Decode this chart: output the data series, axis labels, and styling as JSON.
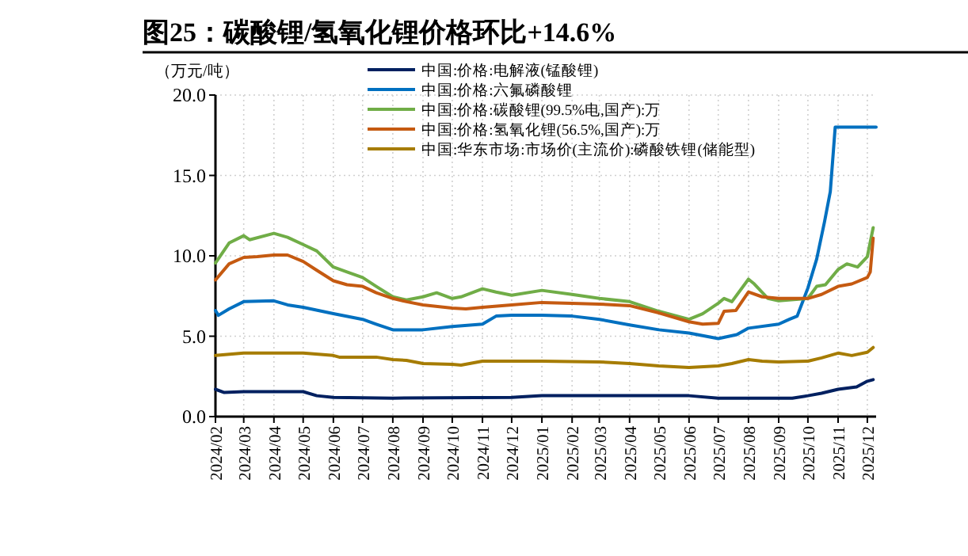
{
  "chart_data": {
    "type": "line",
    "title": "图25：碳酸锂/氢氧化锂价格环比+14.6%",
    "ylabel": "（万元/吨）",
    "xlim": [
      "2024-02-01",
      "2025-12-10"
    ],
    "xticks": [
      {
        "value": "2024-02-01",
        "label": "2024/02"
      },
      {
        "value": "2024-03-01",
        "label": "2024/03"
      },
      {
        "value": "2024-04-01",
        "label": "2024/04"
      },
      {
        "value": "2024-05-01",
        "label": "2024/05"
      },
      {
        "value": "2024-06-01",
        "label": "2024/06"
      },
      {
        "value": "2024-07-01",
        "label": "2024/07"
      },
      {
        "value": "2024-08-01",
        "label": "2024/08"
      },
      {
        "value": "2024-09-01",
        "label": "2024/09"
      },
      {
        "value": "2024-10-01",
        "label": "2024/10"
      },
      {
        "value": "2024-11-01",
        "label": "2024/11"
      },
      {
        "value": "2024-12-01",
        "label": "2024/12"
      },
      {
        "value": "2025-01-01",
        "label": "2025/01"
      },
      {
        "value": "2025-02-01",
        "label": "2025/02"
      },
      {
        "value": "2025-03-01",
        "label": "2025/03"
      },
      {
        "value": "2025-04-01",
        "label": "2025/04"
      },
      {
        "value": "2025-05-01",
        "label": "2025/05"
      },
      {
        "value": "2025-06-01",
        "label": "2025/06"
      },
      {
        "value": "2025-07-01",
        "label": "2025/07"
      },
      {
        "value": "2025-08-01",
        "label": "2025/08"
      },
      {
        "value": "2025-09-01",
        "label": "2025/09"
      },
      {
        "value": "2025-10-01",
        "label": "2025/10"
      },
      {
        "value": "2025-11-01",
        "label": "2025/11"
      },
      {
        "value": "2025-12-01",
        "label": "2025/12"
      }
    ],
    "ylim": [
      0,
      20
    ],
    "yticks": [
      {
        "value": 0,
        "label": "0.0"
      },
      {
        "value": 5,
        "label": "5.0"
      },
      {
        "value": 10,
        "label": "10.0"
      },
      {
        "value": 15,
        "label": "15.0"
      },
      {
        "value": 20,
        "label": "20.0"
      }
    ],
    "grid": true,
    "legend": "top",
    "marker": "none",
    "line_style": "solid",
    "series": [
      {
        "name": "中国:价格:电解液(锰酸锂)",
        "color": "#002060",
        "x": [
          "2024-02-01",
          "2024-02-10",
          "2024-03-01",
          "2024-05-01",
          "2024-05-15",
          "2024-06-01",
          "2024-08-01",
          "2024-12-01",
          "2025-01-01",
          "2025-06-01",
          "2025-07-01",
          "2025-09-15",
          "2025-10-01",
          "2025-10-15",
          "2025-11-01",
          "2025-11-20",
          "2025-12-01",
          "2025-12-07"
        ],
        "values": [
          1.7,
          1.5,
          1.55,
          1.55,
          1.3,
          1.2,
          1.15,
          1.2,
          1.3,
          1.3,
          1.15,
          1.15,
          1.3,
          1.45,
          1.7,
          1.85,
          2.2,
          2.3
        ]
      },
      {
        "name": "中国:价格:六氟磷酸锂",
        "color": "#0070c0",
        "x": [
          "2024-02-01",
          "2024-02-04",
          "2024-02-15",
          "2024-03-01",
          "2024-04-01",
          "2024-04-15",
          "2024-05-01",
          "2024-06-01",
          "2024-07-01",
          "2024-07-15",
          "2024-08-01",
          "2024-09-01",
          "2024-10-01",
          "2024-11-01",
          "2024-11-15",
          "2024-12-01",
          "2025-01-01",
          "2025-02-01",
          "2025-03-01",
          "2025-04-01",
          "2025-05-01",
          "2025-06-01",
          "2025-07-01",
          "2025-07-20",
          "2025-08-01",
          "2025-09-01",
          "2025-09-12",
          "2025-09-20",
          "2025-10-01",
          "2025-10-10",
          "2025-10-18",
          "2025-10-24",
          "2025-10-29",
          "2025-12-10"
        ],
        "values": [
          6.6,
          6.3,
          6.7,
          7.15,
          7.2,
          6.95,
          6.8,
          6.4,
          6.05,
          5.75,
          5.4,
          5.4,
          5.6,
          5.75,
          6.25,
          6.3,
          6.3,
          6.25,
          6.05,
          5.7,
          5.4,
          5.2,
          4.85,
          5.1,
          5.5,
          5.75,
          6.05,
          6.25,
          8.0,
          9.8,
          12.1,
          14.0,
          18.0,
          18.0
        ]
      },
      {
        "name": "中国:价格:碳酸锂(99.5%电,国产):万",
        "color": "#70ad47",
        "x": [
          "2024-02-01",
          "2024-02-15",
          "2024-03-01",
          "2024-03-07",
          "2024-04-01",
          "2024-04-15",
          "2024-05-01",
          "2024-05-15",
          "2024-06-01",
          "2024-06-15",
          "2024-07-01",
          "2024-07-15",
          "2024-08-01",
          "2024-08-15",
          "2024-09-01",
          "2024-09-15",
          "2024-10-01",
          "2024-10-10",
          "2024-11-01",
          "2024-11-15",
          "2024-12-01",
          "2025-01-01",
          "2025-02-01",
          "2025-03-01",
          "2025-04-01",
          "2025-05-01",
          "2025-06-01",
          "2025-06-15",
          "2025-07-01",
          "2025-07-07",
          "2025-07-15",
          "2025-08-01",
          "2025-08-07",
          "2025-08-21",
          "2025-09-01",
          "2025-10-01",
          "2025-10-10",
          "2025-10-19",
          "2025-11-01",
          "2025-11-10",
          "2025-11-21",
          "2025-12-01",
          "2025-12-07"
        ],
        "values": [
          9.55,
          10.8,
          11.25,
          11.0,
          11.4,
          11.15,
          10.7,
          10.3,
          9.3,
          9.0,
          8.65,
          8.1,
          7.45,
          7.25,
          7.45,
          7.7,
          7.35,
          7.45,
          7.95,
          7.75,
          7.55,
          7.85,
          7.6,
          7.35,
          7.15,
          6.55,
          6.05,
          6.4,
          7.05,
          7.35,
          7.15,
          8.55,
          8.25,
          7.35,
          7.2,
          7.35,
          8.1,
          8.2,
          9.15,
          9.5,
          9.3,
          9.95,
          11.75
        ]
      },
      {
        "name": "中国:价格:氢氧化锂(56.5%,国产):万",
        "color": "#c55a11",
        "x": [
          "2024-02-01",
          "2024-02-15",
          "2024-03-01",
          "2024-03-15",
          "2024-04-01",
          "2024-04-15",
          "2024-05-01",
          "2024-05-15",
          "2024-06-01",
          "2024-06-15",
          "2024-07-01",
          "2024-07-15",
          "2024-08-01",
          "2024-08-15",
          "2024-09-01",
          "2024-10-01",
          "2024-10-15",
          "2024-11-01",
          "2024-12-01",
          "2025-01-01",
          "2025-02-01",
          "2025-03-01",
          "2025-04-01",
          "2025-05-01",
          "2025-06-01",
          "2025-06-15",
          "2025-07-01",
          "2025-07-07",
          "2025-07-19",
          "2025-08-01",
          "2025-08-15",
          "2025-09-01",
          "2025-10-01",
          "2025-10-15",
          "2025-11-01",
          "2025-11-15",
          "2025-12-01",
          "2025-12-04",
          "2025-12-07"
        ],
        "values": [
          8.5,
          9.5,
          9.9,
          9.95,
          10.05,
          10.05,
          9.65,
          9.1,
          8.45,
          8.2,
          8.1,
          7.7,
          7.35,
          7.15,
          6.95,
          6.75,
          6.7,
          6.8,
          6.95,
          7.1,
          7.05,
          7.0,
          6.9,
          6.45,
          5.9,
          5.75,
          5.8,
          6.55,
          6.6,
          7.75,
          7.45,
          7.35,
          7.35,
          7.6,
          8.1,
          8.25,
          8.65,
          9.0,
          11.1
        ]
      },
      {
        "name": "中国:华东市场:市场价(主流价):磷酸铁锂(储能型)",
        "color": "#a67c00",
        "x": [
          "2024-02-01",
          "2024-03-01",
          "2024-05-01",
          "2024-06-01",
          "2024-06-07",
          "2024-07-15",
          "2024-08-01",
          "2024-08-15",
          "2024-09-01",
          "2024-10-01",
          "2024-10-10",
          "2024-11-01",
          "2024-12-01",
          "2025-01-01",
          "2025-03-01",
          "2025-04-01",
          "2025-05-01",
          "2025-06-01",
          "2025-07-01",
          "2025-07-15",
          "2025-08-01",
          "2025-08-15",
          "2025-09-01",
          "2025-10-01",
          "2025-10-15",
          "2025-11-01",
          "2025-11-15",
          "2025-12-01",
          "2025-12-07"
        ],
        "values": [
          3.8,
          3.95,
          3.95,
          3.8,
          3.7,
          3.7,
          3.55,
          3.5,
          3.3,
          3.25,
          3.2,
          3.45,
          3.45,
          3.45,
          3.4,
          3.3,
          3.15,
          3.05,
          3.15,
          3.3,
          3.55,
          3.45,
          3.4,
          3.45,
          3.65,
          3.95,
          3.8,
          4.0,
          4.3
        ]
      }
    ]
  }
}
